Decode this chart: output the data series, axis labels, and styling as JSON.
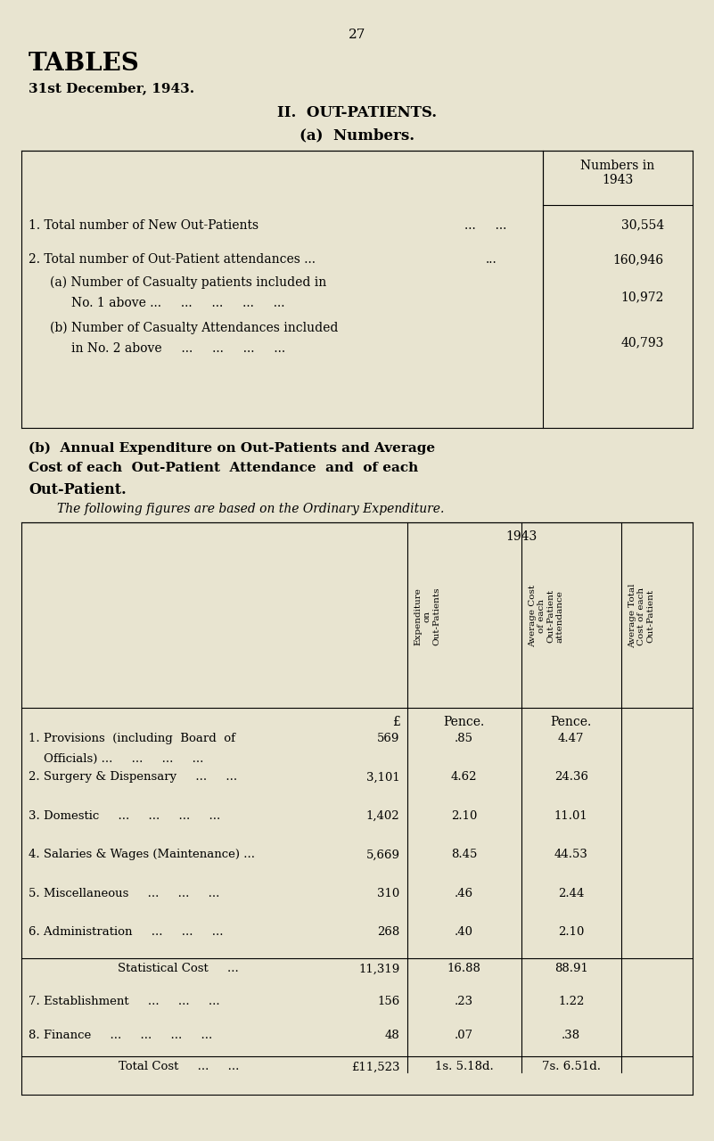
{
  "bg_color": "#e8e4d0",
  "page_number": "27",
  "title1": "TABLES",
  "title2": "31st December, 1943.",
  "section": "II.  OUT-PATIENTS.",
  "subsection_a": "(a)  Numbers.",
  "col_header": "Numbers in\n1943",
  "table_a_rows": [
    {
      "label": "1. Total number of New Out-Patients",
      "dots": "...     ...",
      "value": "30,554"
    },
    {
      "label": "2. Total number of Out-Patient attendances ...",
      "dots": "...",
      "value": "160,946"
    },
    {
      "label": "    (a) Number of Casualty patients included in\n         No. 1 above ...",
      "dots": "...     ...     ...     ...",
      "value": "10,972"
    },
    {
      "label": "    (b) Number of Casualty Attendances included\n         in No. 2 above",
      "dots": "...     ...     ...     ...",
      "value": "40,793"
    }
  ],
  "section_b_title_line1": "(b)  Annual Expenditure on Out-Patients and Average",
  "section_b_title_line2": "Cost of each  Out-Patient  Attendance  and  of each",
  "section_b_title_line3": "Out-Patient.",
  "section_b_italic": "The following figures are based on the Ordinary Expenditure.",
  "col1_header_lines": [
    "Expenditure",
    "on",
    "Out-Patients"
  ],
  "col2_header_lines": [
    "Average Cost",
    "of each",
    "Out-Patient",
    "attendance"
  ],
  "col3_header_lines": [
    "Average Total",
    "Cost of each",
    "Out-Patient"
  ],
  "unit_row": [
    "£",
    "Pence.",
    "Pence."
  ],
  "table_b_rows": [
    {
      "label": "1. Provisions  (including  Board  of\n    Officials) ...     ...     ...     ...",
      "v1": "569",
      "v2": ".85",
      "v3": "4.47"
    },
    {
      "label": "2. Surgery & Dispensary     ...     ...",
      "v1": "3,101",
      "v2": "4.62",
      "v3": "24.36"
    },
    {
      "label": "3. Domestic     ...     ...     ...     ...",
      "v1": "1,402",
      "v2": "2.10",
      "v3": "11.01"
    },
    {
      "label": "4. Salaries & Wages (Maintenance) ...",
      "v1": "5,669",
      "v2": "8.45",
      "v3": "44.53"
    },
    {
      "label": "5. Miscellaneous     ...     ...     ...",
      "v1": "310",
      "v2": ".46",
      "v3": "2.44"
    },
    {
      "label": "6. Administration     ...     ...     ...",
      "v1": "268",
      "v2": ".40",
      "v3": "2.10"
    }
  ],
  "stat_cost_row": {
    "label": "Statistical Cost     ...",
    "v1": "11,319",
    "v2": "16.88",
    "v3": "88.91"
  },
  "extra_rows": [
    {
      "label": "7. Establishment     ...     ...     ...",
      "v1": "156",
      "v2": ".23",
      "v3": "1.22"
    },
    {
      "label": "8. Finance     ...     ...     ...     ...",
      "v1": "48",
      "v2": ".07",
      "v3": ".38"
    }
  ],
  "total_row": {
    "label": "Total Cost     ...     ...",
    "v1": "£11,523",
    "v2": "1s. 5.18d.",
    "v3": "7s. 6.51d."
  }
}
